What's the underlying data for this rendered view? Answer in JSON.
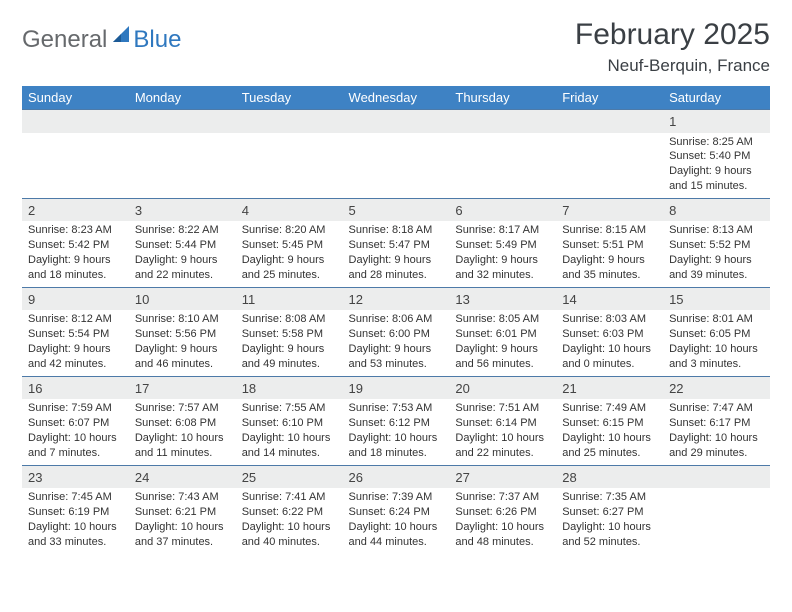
{
  "logo": {
    "general": "General",
    "blue": "Blue"
  },
  "title": "February 2025",
  "location": "Neuf-Berquin, France",
  "colors": {
    "header_bg": "#3e82c4",
    "header_text": "#ffffff",
    "daynum_bg": "#eceded",
    "row_border": "#4d7aa8",
    "logo_gray": "#66696c",
    "logo_blue": "#2f78bf",
    "text": "#333333"
  },
  "day_headers": [
    "Sunday",
    "Monday",
    "Tuesday",
    "Wednesday",
    "Thursday",
    "Friday",
    "Saturday"
  ],
  "weeks": [
    [
      {
        "n": "",
        "sunrise": "",
        "sunset": "",
        "daylight": ""
      },
      {
        "n": "",
        "sunrise": "",
        "sunset": "",
        "daylight": ""
      },
      {
        "n": "",
        "sunrise": "",
        "sunset": "",
        "daylight": ""
      },
      {
        "n": "",
        "sunrise": "",
        "sunset": "",
        "daylight": ""
      },
      {
        "n": "",
        "sunrise": "",
        "sunset": "",
        "daylight": ""
      },
      {
        "n": "",
        "sunrise": "",
        "sunset": "",
        "daylight": ""
      },
      {
        "n": "1",
        "sunrise": "Sunrise: 8:25 AM",
        "sunset": "Sunset: 5:40 PM",
        "daylight": "Daylight: 9 hours and 15 minutes."
      }
    ],
    [
      {
        "n": "2",
        "sunrise": "Sunrise: 8:23 AM",
        "sunset": "Sunset: 5:42 PM",
        "daylight": "Daylight: 9 hours and 18 minutes."
      },
      {
        "n": "3",
        "sunrise": "Sunrise: 8:22 AM",
        "sunset": "Sunset: 5:44 PM",
        "daylight": "Daylight: 9 hours and 22 minutes."
      },
      {
        "n": "4",
        "sunrise": "Sunrise: 8:20 AM",
        "sunset": "Sunset: 5:45 PM",
        "daylight": "Daylight: 9 hours and 25 minutes."
      },
      {
        "n": "5",
        "sunrise": "Sunrise: 8:18 AM",
        "sunset": "Sunset: 5:47 PM",
        "daylight": "Daylight: 9 hours and 28 minutes."
      },
      {
        "n": "6",
        "sunrise": "Sunrise: 8:17 AM",
        "sunset": "Sunset: 5:49 PM",
        "daylight": "Daylight: 9 hours and 32 minutes."
      },
      {
        "n": "7",
        "sunrise": "Sunrise: 8:15 AM",
        "sunset": "Sunset: 5:51 PM",
        "daylight": "Daylight: 9 hours and 35 minutes."
      },
      {
        "n": "8",
        "sunrise": "Sunrise: 8:13 AM",
        "sunset": "Sunset: 5:52 PM",
        "daylight": "Daylight: 9 hours and 39 minutes."
      }
    ],
    [
      {
        "n": "9",
        "sunrise": "Sunrise: 8:12 AM",
        "sunset": "Sunset: 5:54 PM",
        "daylight": "Daylight: 9 hours and 42 minutes."
      },
      {
        "n": "10",
        "sunrise": "Sunrise: 8:10 AM",
        "sunset": "Sunset: 5:56 PM",
        "daylight": "Daylight: 9 hours and 46 minutes."
      },
      {
        "n": "11",
        "sunrise": "Sunrise: 8:08 AM",
        "sunset": "Sunset: 5:58 PM",
        "daylight": "Daylight: 9 hours and 49 minutes."
      },
      {
        "n": "12",
        "sunrise": "Sunrise: 8:06 AM",
        "sunset": "Sunset: 6:00 PM",
        "daylight": "Daylight: 9 hours and 53 minutes."
      },
      {
        "n": "13",
        "sunrise": "Sunrise: 8:05 AM",
        "sunset": "Sunset: 6:01 PM",
        "daylight": "Daylight: 9 hours and 56 minutes."
      },
      {
        "n": "14",
        "sunrise": "Sunrise: 8:03 AM",
        "sunset": "Sunset: 6:03 PM",
        "daylight": "Daylight: 10 hours and 0 minutes."
      },
      {
        "n": "15",
        "sunrise": "Sunrise: 8:01 AM",
        "sunset": "Sunset: 6:05 PM",
        "daylight": "Daylight: 10 hours and 3 minutes."
      }
    ],
    [
      {
        "n": "16",
        "sunrise": "Sunrise: 7:59 AM",
        "sunset": "Sunset: 6:07 PM",
        "daylight": "Daylight: 10 hours and 7 minutes."
      },
      {
        "n": "17",
        "sunrise": "Sunrise: 7:57 AM",
        "sunset": "Sunset: 6:08 PM",
        "daylight": "Daylight: 10 hours and 11 minutes."
      },
      {
        "n": "18",
        "sunrise": "Sunrise: 7:55 AM",
        "sunset": "Sunset: 6:10 PM",
        "daylight": "Daylight: 10 hours and 14 minutes."
      },
      {
        "n": "19",
        "sunrise": "Sunrise: 7:53 AM",
        "sunset": "Sunset: 6:12 PM",
        "daylight": "Daylight: 10 hours and 18 minutes."
      },
      {
        "n": "20",
        "sunrise": "Sunrise: 7:51 AM",
        "sunset": "Sunset: 6:14 PM",
        "daylight": "Daylight: 10 hours and 22 minutes."
      },
      {
        "n": "21",
        "sunrise": "Sunrise: 7:49 AM",
        "sunset": "Sunset: 6:15 PM",
        "daylight": "Daylight: 10 hours and 25 minutes."
      },
      {
        "n": "22",
        "sunrise": "Sunrise: 7:47 AM",
        "sunset": "Sunset: 6:17 PM",
        "daylight": "Daylight: 10 hours and 29 minutes."
      }
    ],
    [
      {
        "n": "23",
        "sunrise": "Sunrise: 7:45 AM",
        "sunset": "Sunset: 6:19 PM",
        "daylight": "Daylight: 10 hours and 33 minutes."
      },
      {
        "n": "24",
        "sunrise": "Sunrise: 7:43 AM",
        "sunset": "Sunset: 6:21 PM",
        "daylight": "Daylight: 10 hours and 37 minutes."
      },
      {
        "n": "25",
        "sunrise": "Sunrise: 7:41 AM",
        "sunset": "Sunset: 6:22 PM",
        "daylight": "Daylight: 10 hours and 40 minutes."
      },
      {
        "n": "26",
        "sunrise": "Sunrise: 7:39 AM",
        "sunset": "Sunset: 6:24 PM",
        "daylight": "Daylight: 10 hours and 44 minutes."
      },
      {
        "n": "27",
        "sunrise": "Sunrise: 7:37 AM",
        "sunset": "Sunset: 6:26 PM",
        "daylight": "Daylight: 10 hours and 48 minutes."
      },
      {
        "n": "28",
        "sunrise": "Sunrise: 7:35 AM",
        "sunset": "Sunset: 6:27 PM",
        "daylight": "Daylight: 10 hours and 52 minutes."
      },
      {
        "n": "",
        "sunrise": "",
        "sunset": "",
        "daylight": ""
      }
    ]
  ]
}
